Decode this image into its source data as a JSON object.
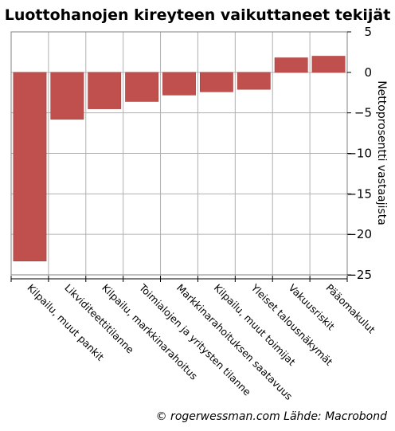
{
  "chart_data": {
    "type": "bar",
    "title": "Luottohanojen kireyteen vaikuttaneet tekijät",
    "ylabel": "Nettoprosentti vastaajista",
    "xlabel": "",
    "ylim": [
      -25,
      5
    ],
    "yticks": [
      5,
      0,
      -5,
      -10,
      -15,
      -20,
      -25
    ],
    "categories": [
      "Kilpailu, muut pankit",
      "Likviditeettitilanne",
      "Kilpailu, markkinarahoitus",
      "Toimialojen ja yritysten tilanne",
      "Markkinarahoituksen saatavuus",
      "Kilpailu, muut toimijat",
      "Yleiset talousnäkymät",
      "Vakuusriskit",
      "Pääomakulut"
    ],
    "series": [
      {
        "values": [
          -23.3,
          -5.8,
          -4.5,
          -3.6,
          -2.8,
          -2.4,
          -2.1,
          1.8,
          2.0
        ]
      }
    ],
    "grid": true,
    "legend": "none",
    "bar_color": "#c0504d",
    "source": "© rogerwessman.com Lähde: Macrobond"
  }
}
